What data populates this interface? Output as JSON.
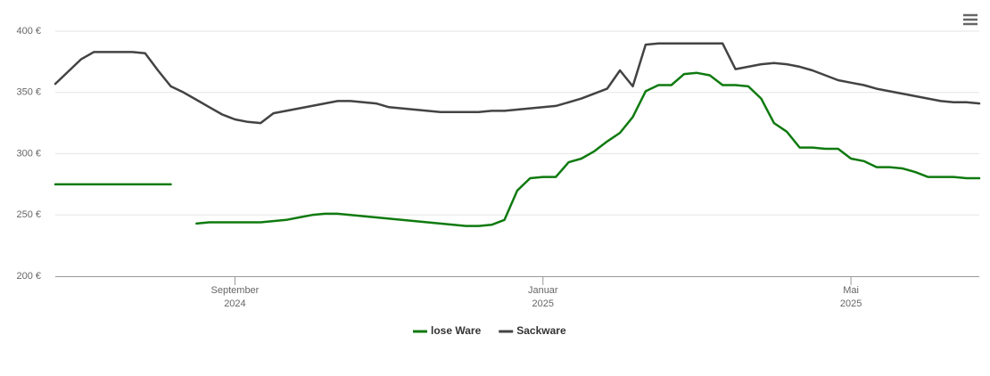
{
  "chart_data": {
    "type": "line",
    "categories": [
      null,
      null,
      null,
      null,
      null,
      null,
      null,
      null,
      null,
      null,
      null,
      null,
      null,
      null,
      "September",
      null,
      null,
      null,
      null,
      null,
      null,
      null,
      null,
      null,
      null,
      null,
      null,
      null,
      null,
      null,
      null,
      null,
      null,
      null,
      null,
      null,
      null,
      null,
      "Januar",
      null,
      null,
      null,
      null,
      null,
      null,
      null,
      null,
      null,
      null,
      null,
      null,
      null,
      null,
      null,
      null,
      null,
      null,
      null,
      null,
      null,
      null,
      null,
      "Mai",
      null,
      null,
      null,
      null,
      null,
      null,
      null,
      null,
      null,
      null
    ],
    "category_years": [
      null,
      null,
      null,
      null,
      null,
      null,
      null,
      null,
      null,
      null,
      null,
      null,
      null,
      null,
      "2024",
      null,
      null,
      null,
      null,
      null,
      null,
      null,
      null,
      null,
      null,
      null,
      null,
      null,
      null,
      null,
      null,
      null,
      null,
      null,
      null,
      null,
      null,
      null,
      "2025",
      null,
      null,
      null,
      null,
      null,
      null,
      null,
      null,
      null,
      null,
      null,
      null,
      null,
      null,
      null,
      null,
      null,
      null,
      null,
      null,
      null,
      null,
      null,
      "2025",
      null,
      null,
      null,
      null,
      null,
      null,
      null,
      null,
      null,
      null
    ],
    "series": [
      {
        "name": "lose Ware",
        "color": "#0f7a0f",
        "values": [
          275,
          275,
          275,
          275,
          275,
          275,
          275,
          275,
          275,
          275,
          null,
          243,
          244,
          244,
          244,
          244,
          244,
          245,
          246,
          248,
          250,
          251,
          251,
          250,
          249,
          248,
          247,
          246,
          245,
          244,
          243,
          242,
          241,
          241,
          242,
          246,
          270,
          280,
          281,
          281,
          293,
          296,
          302,
          310,
          317,
          330,
          351,
          356,
          356,
          365,
          366,
          364,
          356,
          356,
          355,
          345,
          325,
          318,
          305,
          305,
          304,
          304,
          296,
          294,
          289,
          289,
          288,
          285,
          281,
          281,
          281,
          280,
          280
        ]
      },
      {
        "name": "Sackware",
        "color": "#434343",
        "values": [
          357,
          367,
          377,
          383,
          383,
          383,
          383,
          382,
          368,
          355,
          350,
          344,
          338,
          332,
          328,
          326,
          325,
          333,
          335,
          337,
          339,
          341,
          343,
          343,
          342,
          341,
          338,
          337,
          336,
          335,
          334,
          334,
          334,
          334,
          335,
          335,
          336,
          337,
          338,
          339,
          342,
          345,
          349,
          353,
          368,
          355,
          389,
          390,
          390,
          390,
          390,
          390,
          390,
          369,
          371,
          373,
          374,
          373,
          371,
          368,
          364,
          360,
          358,
          356,
          353,
          351,
          349,
          347,
          345,
          343,
          342,
          342,
          341
        ]
      }
    ],
    "ylim": [
      200,
      400
    ],
    "yticks": [
      {
        "value": 200,
        "label": "200 €"
      },
      {
        "value": 250,
        "label": "250 €"
      },
      {
        "value": 300,
        "label": "300 €"
      },
      {
        "value": 350,
        "label": "350 €"
      },
      {
        "value": 400,
        "label": "400 €"
      }
    ],
    "grid": true
  }
}
